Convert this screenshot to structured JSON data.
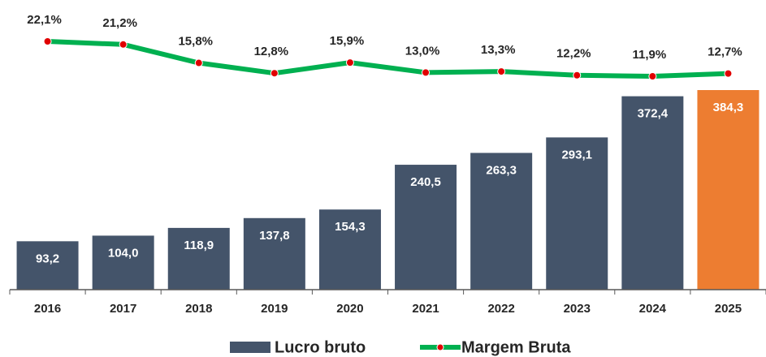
{
  "chart_data": {
    "type": "bar_line",
    "categories": [
      "2016",
      "2017",
      "2018",
      "2019",
      "2020",
      "2021",
      "2022",
      "2023",
      "2024",
      "2025"
    ],
    "series": [
      {
        "name": "Lucro bruto",
        "type": "bar",
        "color": "#44546a",
        "colors": [
          "#44546a",
          "#44546a",
          "#44546a",
          "#44546a",
          "#44546a",
          "#44546a",
          "#44546a",
          "#44546a",
          "#44546a",
          "#ed7d31"
        ],
        "values": [
          93.2,
          104.0,
          118.9,
          137.8,
          154.3,
          240.5,
          263.3,
          293.1,
          372.4,
          384.3
        ],
        "value_labels": [
          "93,2",
          "104,0",
          "118,9",
          "137,8",
          "154,3",
          "240,5",
          "263,3",
          "293,1",
          "372,4",
          "384,3"
        ]
      },
      {
        "name": "Margem Bruta",
        "type": "line",
        "axis": "y2",
        "color": "#00b050",
        "marker_color": "#e00000",
        "values": [
          22.1,
          21.2,
          15.8,
          12.8,
          15.9,
          13.0,
          13.3,
          12.2,
          11.9,
          12.7
        ],
        "value_labels": [
          "22,1%",
          "21,2%",
          "15,8%",
          "12,8%",
          "15,9%",
          "13,0%",
          "13,3%",
          "12,2%",
          "11,9%",
          "12,7%"
        ]
      }
    ],
    "legend": "bottom"
  }
}
